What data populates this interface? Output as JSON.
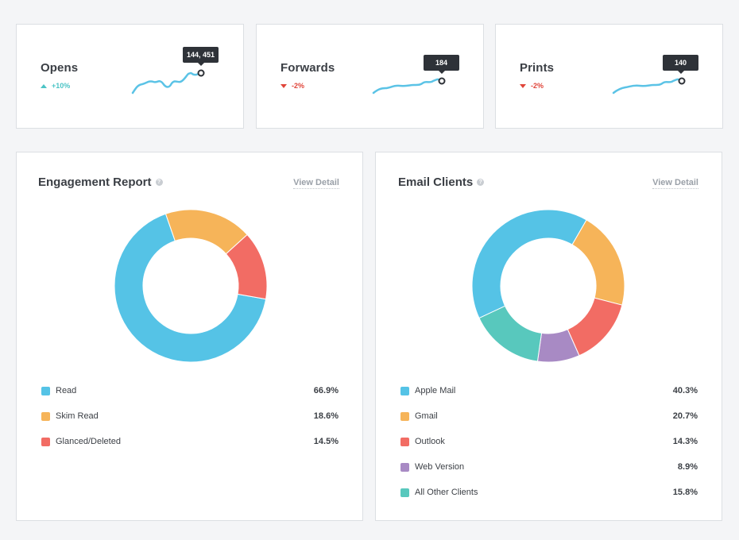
{
  "stats": [
    {
      "title": "Opens",
      "change": "+10%",
      "direction": "up",
      "tooltip": "144, 451",
      "color": "#5bc3e6"
    },
    {
      "title": "Forwards",
      "change": "-2%",
      "direction": "down",
      "tooltip": "184",
      "color": "#5bc3e6"
    },
    {
      "title": "Prints",
      "change": "-2%",
      "direction": "down",
      "tooltip": "140",
      "color": "#5bc3e6"
    }
  ],
  "engagement": {
    "title": "Engagement Report",
    "view_detail": "View Detail",
    "items": [
      {
        "label": "Read",
        "value": "66.9%",
        "color": "#55c3e6"
      },
      {
        "label": "Skim Read",
        "value": "18.6%",
        "color": "#f6b459"
      },
      {
        "label": "Glanced/Deleted",
        "value": "14.5%",
        "color": "#f26c64"
      }
    ]
  },
  "clients": {
    "title": "Email Clients",
    "view_detail": "View Detail",
    "items": [
      {
        "label": "Apple Mail",
        "value": "40.3%",
        "color": "#55c3e6"
      },
      {
        "label": "Gmail",
        "value": "20.7%",
        "color": "#f6b459"
      },
      {
        "label": "Outlook",
        "value": "14.3%",
        "color": "#f26c64"
      },
      {
        "label": "Web Version",
        "value": "8.9%",
        "color": "#a88ac4"
      },
      {
        "label": "All Other Clients",
        "value": "15.8%",
        "color": "#58c8bd"
      }
    ]
  },
  "chart_data": [
    {
      "type": "pie",
      "title": "Engagement Report",
      "categories": [
        "Read",
        "Skim Read",
        "Glanced/Deleted"
      ],
      "values": [
        66.9,
        18.6,
        14.5
      ]
    },
    {
      "type": "pie",
      "title": "Email Clients",
      "categories": [
        "Apple Mail",
        "Gmail",
        "Outlook",
        "Web Version",
        "All Other Clients"
      ],
      "values": [
        40.3,
        20.7,
        14.3,
        8.9,
        15.8
      ]
    }
  ]
}
